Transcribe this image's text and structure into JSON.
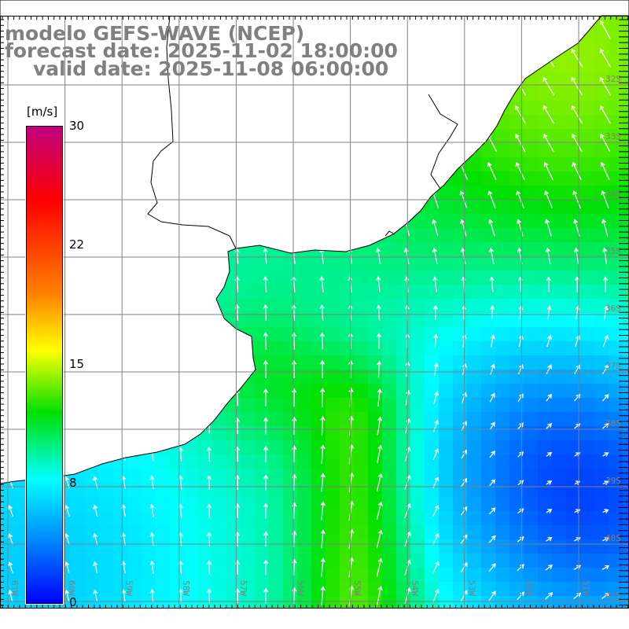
{
  "title": {
    "line1": "modelo GEFS-WAVE (NCEP)",
    "line2": "forecast date: 2025-11-02 18:00:00",
    "line3": "valid date: 2025-11-08 06:00:00"
  },
  "colorbar": {
    "unit": "[m/s]",
    "ticks": [
      "30",
      "22",
      "15",
      "8",
      "0"
    ],
    "range": [
      0,
      30
    ],
    "colors": [
      "#c0007f",
      "#ff0000",
      "#ffff00",
      "#00e000",
      "#00ffff",
      "#0000ff"
    ]
  },
  "axes": {
    "lon_labels": [
      "61W",
      "60W",
      "59W",
      "58W",
      "57W",
      "56W",
      "55W",
      "54W",
      "53W",
      "52W",
      "51W"
    ],
    "lat_labels": [
      "32S",
      "33S",
      "34S",
      "35S",
      "36S",
      "37S",
      "38S",
      "39S",
      "40S",
      "41S"
    ]
  },
  "colors": {
    "land": "#ffffff",
    "grid": "#808080",
    "coast": "#000000",
    "label": "#808080"
  }
}
